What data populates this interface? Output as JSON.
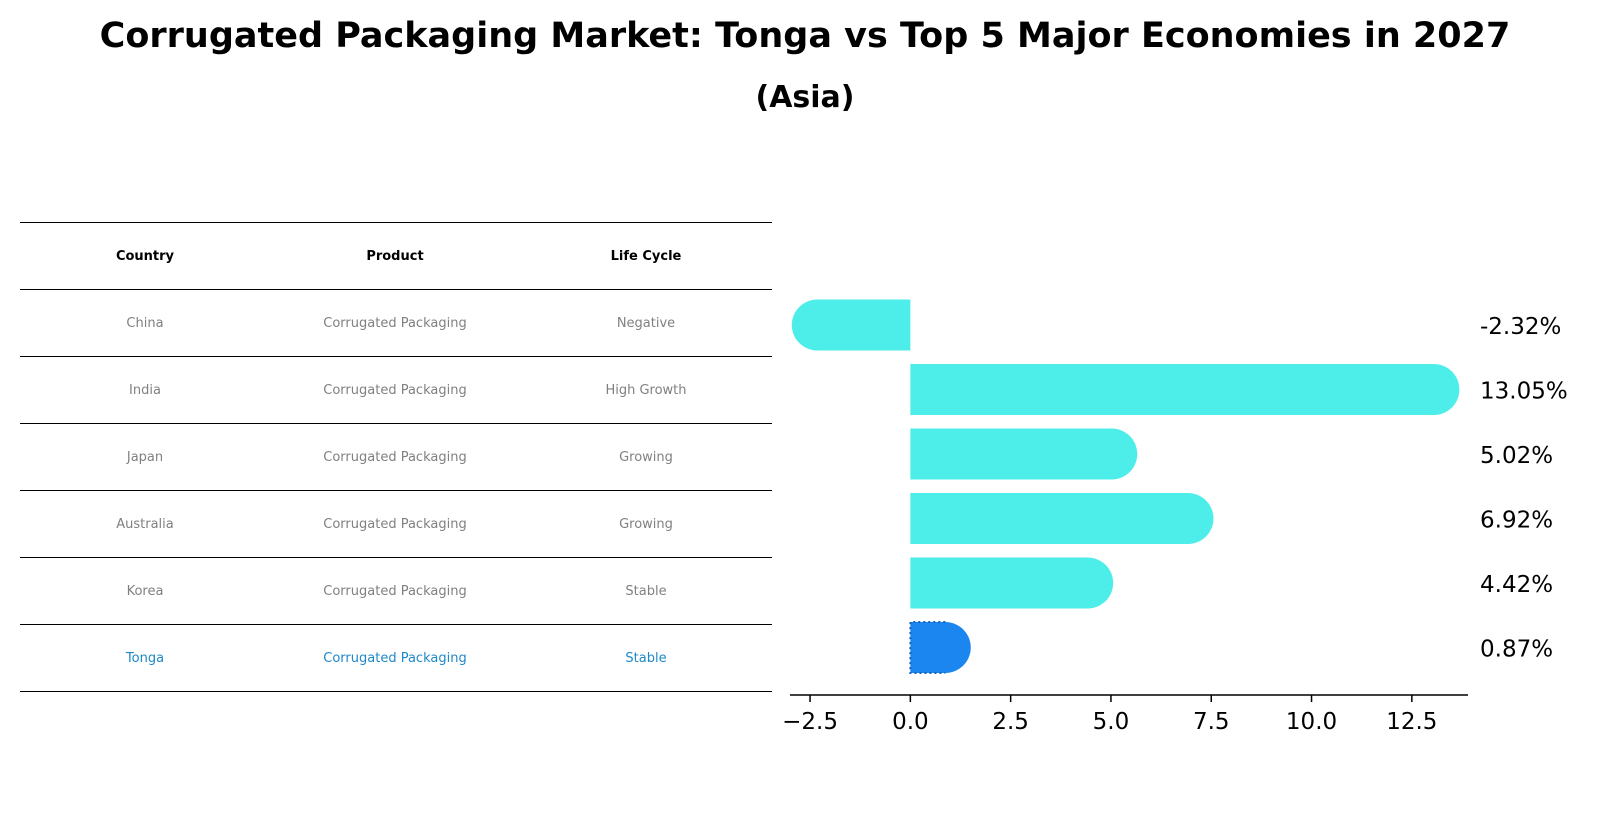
{
  "header": {
    "title": "Corrugated Packaging Market: Tonga vs Top 5 Major Economies in 2027",
    "subtitle": "(Asia)"
  },
  "table": {
    "columns": [
      "Country",
      "Product",
      "Life Cycle"
    ],
    "rows": [
      {
        "country": "China",
        "product": "Corrugated Packaging",
        "life_cycle": "Negative"
      },
      {
        "country": "India",
        "product": "Corrugated Packaging",
        "life_cycle": "High Growth"
      },
      {
        "country": "Japan",
        "product": "Corrugated Packaging",
        "life_cycle": "Growing"
      },
      {
        "country": "Australia",
        "product": "Corrugated Packaging",
        "life_cycle": "Growing"
      },
      {
        "country": "Korea",
        "product": "Corrugated Packaging",
        "life_cycle": "Stable"
      },
      {
        "country": "Tonga",
        "product": "Corrugated Packaging",
        "life_cycle": "Stable"
      }
    ]
  },
  "chart_data": {
    "type": "bar",
    "orientation": "horizontal",
    "categories": [
      "China",
      "India",
      "Japan",
      "Australia",
      "Korea",
      "Tonga"
    ],
    "values": [
      -2.32,
      13.05,
      5.02,
      6.92,
      4.42,
      0.87
    ],
    "value_labels": [
      "-2.32%",
      "13.05%",
      "5.02%",
      "6.92%",
      "4.42%",
      "0.87%"
    ],
    "highlight": "Tonga",
    "xlim": [
      -3.0,
      13.9
    ],
    "xticks": [
      -2.5,
      0.0,
      2.5,
      5.0,
      7.5,
      10.0,
      12.5
    ],
    "xtick_labels": [
      "−2.5",
      "0.0",
      "2.5",
      "5.0",
      "7.5",
      "10.0",
      "12.5"
    ],
    "colors": {
      "bar": "#4DEEEA",
      "highlight": "#1B85F0",
      "axis": "#000000",
      "label": "#000000"
    }
  }
}
